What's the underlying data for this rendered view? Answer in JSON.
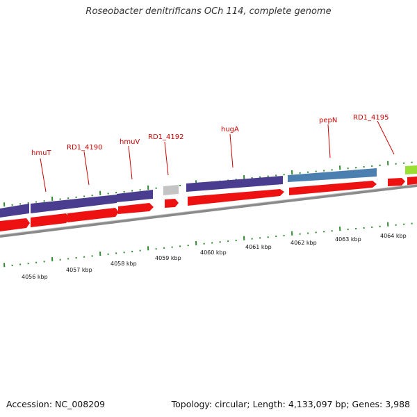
{
  "title": "Roseobacter denitrificans OCh 114, complete genome",
  "accession": "Accession: NC_008209",
  "topology": "Topology: circular; Length: 4,133,097 bp; Genes: 3,988",
  "colors": {
    "gene_label": "#cc0000",
    "tick": "#2e8b2e",
    "cds_red": "#ee1111",
    "purple": "#4a3d8f",
    "blue": "#4a7fb0",
    "grey": "#c4c4c4",
    "lime": "#99e033",
    "backbone": "#8a8a8a"
  },
  "kbp_labels": [
    "4056 kbp",
    "4057 kbp",
    "4058 kbp",
    "4059 kbp",
    "4060 kbp",
    "4061 kbp",
    "4062 kbp",
    "4063 kbp",
    "4064 kbp"
  ],
  "gene_labels": [
    "hmuT",
    "RD1_4190",
    "hmuV",
    "RD1_4192",
    "hugA",
    "pepN",
    "RD1_4195"
  ],
  "features": [
    {
      "name": "hmuT",
      "track": "outer",
      "color": "purple"
    },
    {
      "name": "RD1_4190",
      "track": "outer",
      "color": "purple"
    },
    {
      "name": "hmuV",
      "track": "outer",
      "color": "purple"
    },
    {
      "name": "RD1_4192",
      "track": "outer",
      "color": "grey"
    },
    {
      "name": "hugA",
      "track": "outer",
      "color": "purple"
    },
    {
      "name": "pepN",
      "track": "outer",
      "color": "blue"
    },
    {
      "name": "RD1_4195",
      "track": "outer",
      "color": "lime"
    }
  ]
}
